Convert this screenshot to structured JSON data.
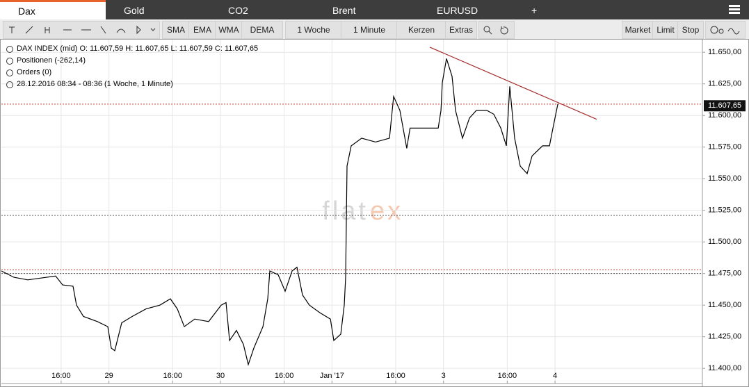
{
  "tabs": [
    "Dax",
    "Gold",
    "CO2",
    "Brent",
    "EURUSD",
    "+"
  ],
  "toolbar": {
    "indicators": [
      "SMA",
      "EMA",
      "WMA",
      "DEMA"
    ],
    "period": "1 Woche",
    "interval": "1 Minute",
    "style": "Kerzen",
    "extras": "Extras",
    "orders": [
      "Market",
      "Limit",
      "Stop"
    ]
  },
  "info": [
    "DAX INDEX (mid)  O: 11.607,59  H: 11.607,65  L: 11.607,59  C: 11.607,65",
    "Positionen (-262,14)",
    "Orders (0)",
    "28.12.2016 08:34 - 08:36   (1 Woche, 1 Minute)"
  ],
  "chart_data": {
    "type": "line",
    "color": "#000000",
    "grid": true,
    "watermark": [
      "flat",
      "ex"
    ],
    "x": [
      0.5,
      2.07,
      3.82,
      7.31,
      8.18,
      9.49,
      9.93,
      10.8,
      12.55,
      13.86,
      14.29,
      14.73,
      15.6,
      16.91,
      18.66,
      20.4,
      21.71,
      22.59,
      23.46,
      24.77,
      26.52,
      28.09,
      28.7,
      29.14,
      30.01,
      30.88,
      31.49,
      32.19,
      33.33,
      33.94,
      34.2,
      35.25,
      36.12,
      36.99,
      37.6,
      38.3,
      39.17,
      40.48,
      41.8,
      42.23,
      43.1,
      43.54,
      43.71,
      43.89,
      44.41,
      45.72,
      47.47,
      49.21,
      49.74,
      50.52,
      51.39,
      51.8,
      53.15,
      55.33,
      55.68,
      55.85,
      56.37,
      57.07,
      57.51,
      58.38,
      59.26,
      60.13,
      61.44,
      62.31,
      63.19,
      63.89,
      64.32,
      64.93,
      65.63,
      66.5,
      67.12,
      68.43,
      69.3,
      69.74,
      70.35
    ],
    "values": [
      11477,
      11472,
      11470,
      11473,
      11466,
      11465,
      11450,
      11441,
      11437,
      11433,
      11416,
      11414,
      11436,
      11441,
      11447,
      11450,
      11455,
      11447,
      11433,
      11439,
      11437,
      11450,
      11452,
      11422,
      11430,
      11419,
      11403,
      11416,
      11433,
      11455,
      11477,
      11474,
      11461,
      11477,
      11480,
      11458,
      11450,
      11444,
      11439,
      11422,
      11427,
      11450,
      11472,
      11560,
      11576,
      11582,
      11579,
      11582,
      11615,
      11604,
      11574,
      11590,
      11590,
      11590,
      11604,
      11626,
      11645,
      11631,
      11604,
      11582,
      11598,
      11604,
      11604,
      11601,
      11590,
      11576,
      11623,
      11582,
      11560,
      11554,
      11568,
      11576,
      11576,
      11590,
      11609
    ],
    "xlim": [
      0.5,
      88.5
    ],
    "xticks": [
      {
        "value": 8,
        "label": "16:00"
      },
      {
        "value": 14,
        "label": "29"
      },
      {
        "value": 22,
        "label": "16:00"
      },
      {
        "value": 28,
        "label": "30"
      },
      {
        "value": 36,
        "label": "16:00"
      },
      {
        "value": 42,
        "label": "Jan '17"
      },
      {
        "value": 50,
        "label": "16:00"
      },
      {
        "value": 56,
        "label": "3"
      },
      {
        "value": 64,
        "label": "16:00"
      },
      {
        "value": 70,
        "label": "4"
      }
    ],
    "ylim": [
      11388,
      11660
    ],
    "yticks": [
      {
        "value": 11400,
        "label": "11.400,00"
      },
      {
        "value": 11425,
        "label": "11.425,00"
      },
      {
        "value": 11450,
        "label": "11.450,00"
      },
      {
        "value": 11475,
        "label": "11.475,00"
      },
      {
        "value": 11500,
        "label": "11.500,00"
      },
      {
        "value": 11525,
        "label": "11.525,00"
      },
      {
        "value": 11550,
        "label": "11.550,00"
      },
      {
        "value": 11575,
        "label": "11.575,00"
      },
      {
        "value": 11600,
        "label": "11.600,00"
      },
      {
        "value": 11625,
        "label": "11.625,00"
      },
      {
        "value": 11650,
        "label": "11.650,00"
      }
    ],
    "levels": [
      {
        "value": 11521,
        "color": "#555555"
      },
      {
        "value": 11475,
        "color": "#555555"
      },
      {
        "value": 11478,
        "color": "#c0392b"
      },
      {
        "value": 11609,
        "color": "#c0392b"
      }
    ],
    "trendline": {
      "x": [
        54.28,
        75.23
      ],
      "values": [
        11654,
        11597
      ],
      "color": "#a52a2a"
    },
    "last": {
      "value": 11607.65,
      "label": "11.607,65"
    }
  }
}
